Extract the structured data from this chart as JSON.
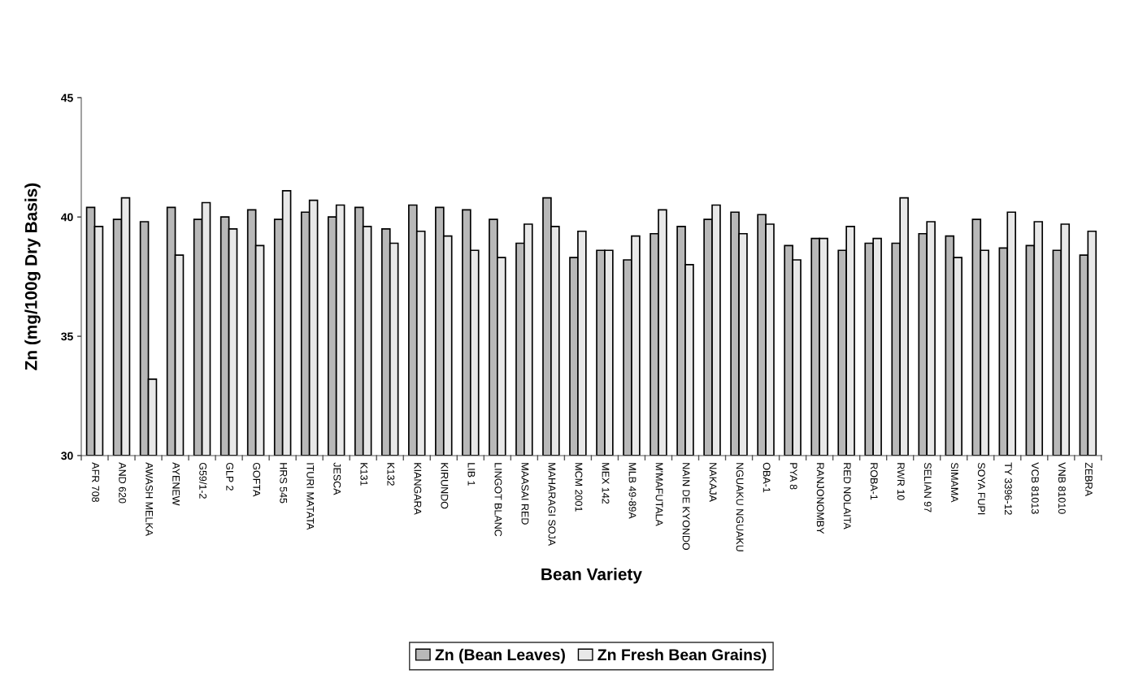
{
  "chart_data": {
    "type": "bar",
    "xlabel": "Bean Variety",
    "ylabel": "Zn (mg/100g Dry Basis)",
    "categories": [
      "AFR 708",
      "AND 620",
      "AWASH MELKA",
      "AYENEW",
      "G59/1-2",
      "GLP 2",
      "GOFTA",
      "HRS 545",
      "ITURI MATATA",
      "JESCA",
      "K131",
      "K132",
      "KIANGARA",
      "KIRUNDO",
      "LIB 1",
      "LINGOT BLANC",
      "MAASAI RED",
      "MAHARAGI SOJA",
      "MCM 2001",
      "MEX 142",
      "MLB 49-89A",
      "M'MAFUTALA",
      "NAIN DE KYONDO",
      "NAKAJA",
      "NGUAKU NGUAKU",
      "OBA-1",
      "PYA 8",
      "RANJONOMBY",
      "RED NOLAITA",
      "ROBA-1",
      "RWR 10",
      "SELIAN 97",
      "SIMAMA",
      "SOYA FUPI",
      "TY 3396-12",
      "VCB 81013",
      "VNB 81010",
      "ZEBRA"
    ],
    "series": [
      {
        "name": "Zn (Bean Leaves)",
        "color": "#b8b8b8",
        "values": [
          40.4,
          39.9,
          39.8,
          40.4,
          39.9,
          40.0,
          40.3,
          39.9,
          40.2,
          40.0,
          40.4,
          39.5,
          40.5,
          40.4,
          40.3,
          39.9,
          38.9,
          40.8,
          38.3,
          38.6,
          38.2,
          39.3,
          39.6,
          39.9,
          40.2,
          40.1,
          38.8,
          39.1,
          38.6,
          38.9,
          38.9,
          39.3,
          39.2,
          39.9,
          38.7,
          38.8,
          38.6,
          38.4
        ]
      },
      {
        "name": "Zn Fresh Bean Grains)",
        "color": "#e8e8e8",
        "values": [
          39.6,
          40.8,
          33.2,
          38.4,
          40.6,
          39.5,
          38.8,
          41.1,
          40.7,
          40.5,
          39.6,
          38.9,
          39.4,
          39.2,
          38.6,
          38.3,
          39.7,
          39.6,
          39.4,
          38.6,
          39.2,
          40.3,
          38.0,
          40.5,
          39.3,
          39.7,
          38.2,
          39.1,
          39.6,
          39.1,
          40.8,
          39.8,
          38.3,
          38.6,
          40.2,
          39.8,
          39.7,
          39.4
        ]
      }
    ],
    "ylim": [
      30,
      45
    ],
    "yticks": [
      30,
      35,
      40,
      45
    ],
    "grid": false,
    "legend": "bottom"
  }
}
